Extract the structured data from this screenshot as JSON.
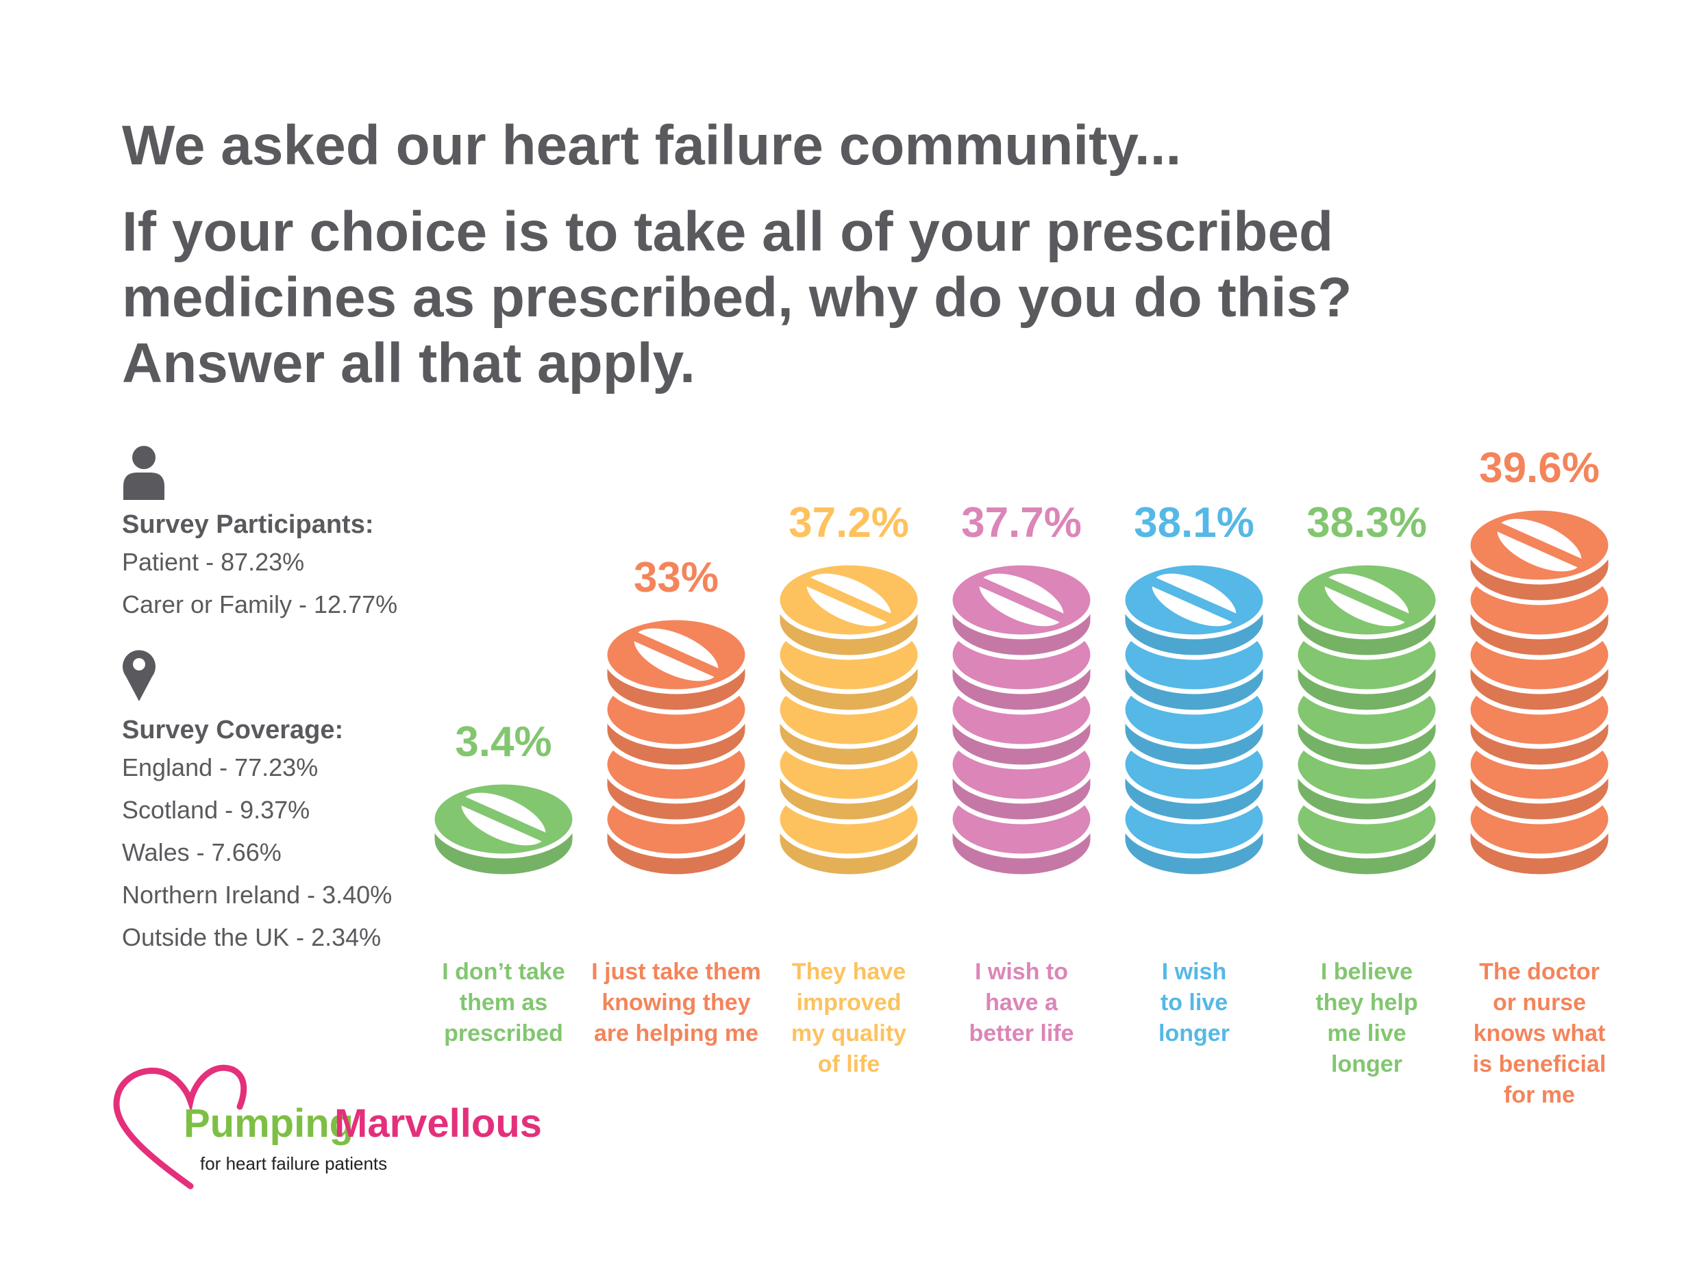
{
  "heading": {
    "line1": "We asked our heart failure community...",
    "question": "If your choice is to take all of your prescribed\nmedicines as prescribed, why do you do this?\nAnswer all that apply."
  },
  "participants": {
    "icon": "person-icon",
    "title": "Survey Participants:",
    "items": [
      "Patient - 87.23%",
      "Carer or Family - 12.77%"
    ]
  },
  "coverage": {
    "icon": "location-pin-icon",
    "title": "Survey Coverage:",
    "items": [
      "England - 77.23%",
      "Scotland - 9.37%",
      "Wales - 7.66%",
      "Northern Ireland - 3.40%",
      "Outside the UK - 2.34%"
    ]
  },
  "logo": {
    "icon": "heart-outline-icon",
    "word1": "Pumping",
    "word2": "Marvellous",
    "tagline": "for heart failure patients",
    "colors": {
      "heart": "#e4307a",
      "word1": "#7dbf44",
      "word2": "#e4307a"
    }
  },
  "chart_data": {
    "type": "bar",
    "title": "If your choice is to take all of your prescribed medicines as prescribed, why do you do this? Answer all that apply.",
    "xlabel": "",
    "ylabel": "",
    "unit": "%",
    "categories": [
      "I don't take them as prescribed",
      "I just take them knowing they are helping me",
      "They have improved my quality of life",
      "I wish to have a better life",
      "I wish to live longer",
      "I believe they help me live longer",
      "The doctor or nurse knows what is beneficial for me"
    ],
    "category_lines": [
      [
        "I don’t take",
        "them as",
        "prescribed"
      ],
      [
        "I just take them",
        "knowing they",
        "are helping me"
      ],
      [
        "They have",
        "improved",
        "my quality",
        "of life"
      ],
      [
        "I wish to",
        "have a",
        "better life"
      ],
      [
        "I wish",
        "to live",
        "longer"
      ],
      [
        "I believe",
        "they help",
        "me live",
        "longer"
      ],
      [
        "The doctor",
        "or nurse",
        "knows what",
        "is beneficial",
        "for me"
      ]
    ],
    "values": [
      3.4,
      33,
      37.2,
      37.7,
      38.1,
      38.3,
      39.6
    ],
    "value_labels": [
      "3.4%",
      "33%",
      "37.2%",
      "37.7%",
      "38.1%",
      "38.3%",
      "39.6%"
    ],
    "pill_counts": [
      1,
      4,
      5,
      5,
      5,
      5,
      6
    ],
    "colors": [
      "#82c670",
      "#f4845a",
      "#fdc25e",
      "#db85b8",
      "#55b8e6",
      "#82c670",
      "#f4845a"
    ]
  }
}
